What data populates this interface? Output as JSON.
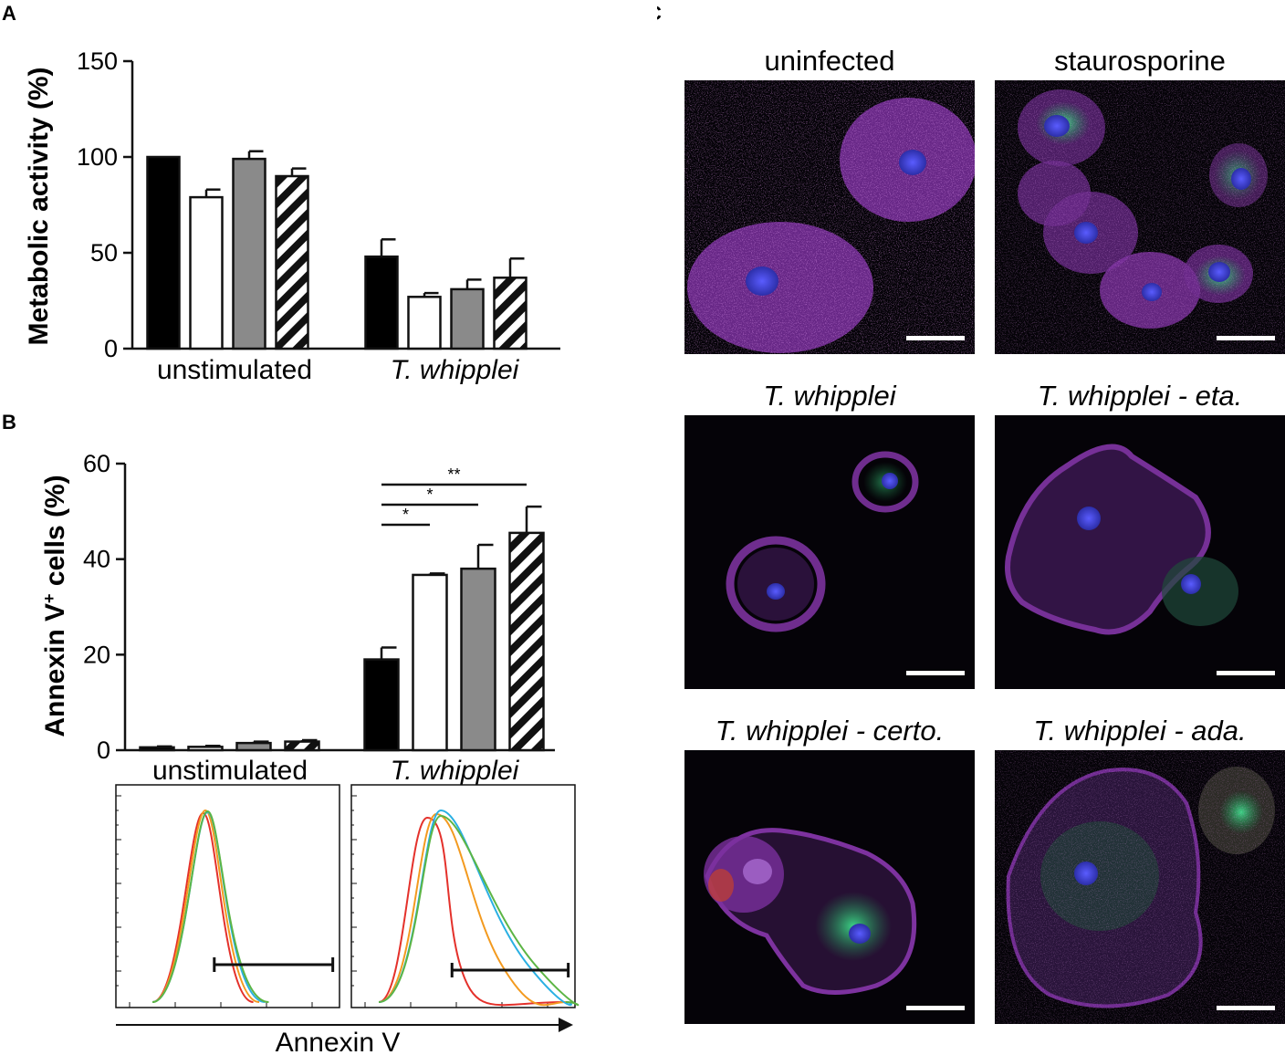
{
  "panels": {
    "a": {
      "letter": "A"
    },
    "b": {
      "letter": "B"
    },
    "c": {
      "letter": "C"
    }
  },
  "chart_data": [
    {
      "panel": "A",
      "type": "bar",
      "ylabel": "Metabolic activity (%)",
      "ylim": [
        0,
        150
      ],
      "yticks": [
        "0",
        "50",
        "100",
        "150"
      ],
      "groups": [
        "unstimulated",
        "T. whipplei"
      ],
      "bar_styles": [
        "solid-black",
        "white",
        "gray",
        "hatched"
      ],
      "series": [
        {
          "values": [
            100,
            48
          ],
          "errors": [
            0,
            9
          ]
        },
        {
          "values": [
            79,
            27
          ],
          "errors": [
            4,
            2
          ]
        },
        {
          "values": [
            99,
            31
          ],
          "errors": [
            4,
            5
          ]
        },
        {
          "values": [
            90,
            37
          ],
          "errors": [
            4,
            10
          ]
        }
      ],
      "grid": false
    },
    {
      "panel": "B",
      "type": "bar",
      "ylabel": "Annexin V",
      "ylabel_sup": "+",
      "ylabel_rest": " cells (%)",
      "ylim": [
        0,
        60
      ],
      "yticks": [
        "0",
        "20",
        "40",
        "60"
      ],
      "groups": [
        "unstimulated",
        "T. whipplei"
      ],
      "bar_styles": [
        "solid-black",
        "white",
        "gray",
        "hatched"
      ],
      "series": [
        {
          "values": [
            0.6,
            19
          ],
          "errors": [
            0.2,
            2.5
          ]
        },
        {
          "values": [
            0.7,
            36.7
          ],
          "errors": [
            0.2,
            0.3
          ]
        },
        {
          "values": [
            1.5,
            38
          ],
          "errors": [
            0.3,
            5
          ]
        },
        {
          "values": [
            1.8,
            45.5
          ],
          "errors": [
            0.3,
            5.5
          ]
        }
      ],
      "significance": [
        {
          "from_bar": 1,
          "to_bar": 2,
          "label": "*"
        },
        {
          "from_bar": 1,
          "to_bar": 3,
          "label": "*"
        },
        {
          "from_bar": 1,
          "to_bar": 4,
          "label": "**"
        }
      ],
      "grid": false
    },
    {
      "panel": "B-histograms",
      "type": "line",
      "xlabel": "Annexin V",
      "x_scale": "log",
      "series_colors": [
        "#e4312b",
        "#f39a1f",
        "#2ab0e3",
        "#5cb545"
      ],
      "histograms": [
        {
          "peaks_relative": [
            0.39,
            0.4,
            0.41,
            0.41
          ],
          "gate": [
            0.44,
            0.97
          ]
        },
        {
          "peaks_relative": [
            0.34,
            0.38,
            0.4,
            0.4
          ],
          "gate": [
            0.45,
            0.97
          ]
        }
      ]
    }
  ],
  "microscopy": {
    "images": [
      {
        "title": "uninfected",
        "italic": false
      },
      {
        "title": "staurosporine",
        "italic": false
      },
      {
        "title": "T. whipplei",
        "italic": true
      },
      {
        "title": "T. whipplei - eta.",
        "italic": true
      },
      {
        "title": "T. whipplei - certo.",
        "italic": true
      },
      {
        "title": "T. whipplei - ada.",
        "italic": true
      }
    ]
  }
}
